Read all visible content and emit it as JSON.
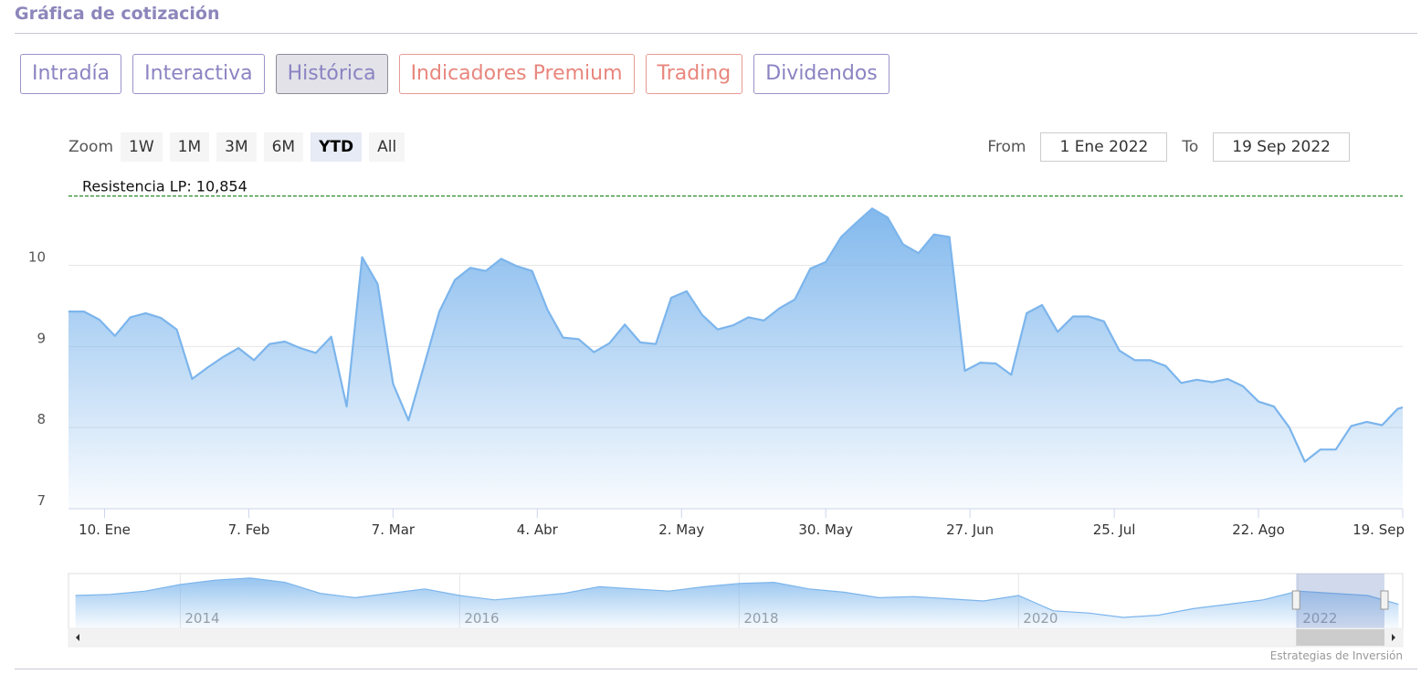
{
  "header": {
    "title": "Gráfica de cotización"
  },
  "tabs": [
    {
      "label": "Intradía",
      "style": "default"
    },
    {
      "label": "Interactiva",
      "style": "default"
    },
    {
      "label": "Histórica",
      "style": "active"
    },
    {
      "label": "Indicadores Premium",
      "style": "premium"
    },
    {
      "label": "Trading",
      "style": "premium"
    },
    {
      "label": "Dividendos",
      "style": "default"
    }
  ],
  "zoom": {
    "label": "Zoom",
    "buttons": [
      {
        "label": "1W",
        "selected": false
      },
      {
        "label": "1M",
        "selected": false
      },
      {
        "label": "3M",
        "selected": false
      },
      {
        "label": "6M",
        "selected": false
      },
      {
        "label": "YTD",
        "selected": true
      },
      {
        "label": "All",
        "selected": false
      }
    ]
  },
  "range": {
    "from_label": "From",
    "from": "1 Ene 2022",
    "to_label": "To",
    "to": "19 Sep 2022"
  },
  "chart_data": {
    "type": "area",
    "color": "#7cb5ec",
    "annotation": "Resistencia LP: 10,854",
    "resistance": 10.854,
    "resistance_color": "#2e8b2e",
    "x": [
      "2022-01-03",
      "2022-01-06",
      "2022-01-09",
      "2022-01-12",
      "2022-01-15",
      "2022-01-18",
      "2022-01-21",
      "2022-01-24",
      "2022-01-27",
      "2022-01-30",
      "2022-02-02",
      "2022-02-05",
      "2022-02-08",
      "2022-02-11",
      "2022-02-14",
      "2022-02-17",
      "2022-02-20",
      "2022-02-23",
      "2022-02-26",
      "2022-03-01",
      "2022-03-04",
      "2022-03-07",
      "2022-03-10",
      "2022-03-13",
      "2022-03-16",
      "2022-03-19",
      "2022-03-22",
      "2022-03-25",
      "2022-03-28",
      "2022-03-31",
      "2022-04-03",
      "2022-04-06",
      "2022-04-09",
      "2022-04-12",
      "2022-04-15",
      "2022-04-18",
      "2022-04-21",
      "2022-04-24",
      "2022-04-27",
      "2022-04-30",
      "2022-05-03",
      "2022-05-06",
      "2022-05-09",
      "2022-05-12",
      "2022-05-15",
      "2022-05-18",
      "2022-05-21",
      "2022-05-24",
      "2022-05-27",
      "2022-05-30",
      "2022-06-02",
      "2022-06-05",
      "2022-06-08",
      "2022-06-11",
      "2022-06-14",
      "2022-06-17",
      "2022-06-20",
      "2022-06-23",
      "2022-06-26",
      "2022-06-29",
      "2022-07-02",
      "2022-07-05",
      "2022-07-08",
      "2022-07-11",
      "2022-07-14",
      "2022-07-17",
      "2022-07-20",
      "2022-07-23",
      "2022-07-26",
      "2022-07-29",
      "2022-08-01",
      "2022-08-04",
      "2022-08-07",
      "2022-08-10",
      "2022-08-13",
      "2022-08-16",
      "2022-08-19",
      "2022-08-22",
      "2022-08-25",
      "2022-08-28",
      "2022-08-31",
      "2022-09-03",
      "2022-09-06",
      "2022-09-09",
      "2022-09-12",
      "2022-09-15",
      "2022-09-18",
      "2022-09-19"
    ],
    "values": [
      9.43,
      9.43,
      9.33,
      9.13,
      9.36,
      9.41,
      9.35,
      9.21,
      8.6,
      8.74,
      8.87,
      8.98,
      8.83,
      9.03,
      9.06,
      8.98,
      8.92,
      9.12,
      8.26,
      10.1,
      9.77,
      8.54,
      8.09,
      8.76,
      9.43,
      9.82,
      9.97,
      9.93,
      10.08,
      9.99,
      9.93,
      9.45,
      9.11,
      9.09,
      8.93,
      9.04,
      9.27,
      9.05,
      9.03,
      9.6,
      9.68,
      9.39,
      9.21,
      9.26,
      9.36,
      9.32,
      9.47,
      9.58,
      9.96,
      10.04,
      10.35,
      10.53,
      10.7,
      10.59,
      10.26,
      10.15,
      10.38,
      10.35,
      8.7,
      8.8,
      8.79,
      8.65,
      9.41,
      9.51,
      9.18,
      9.37,
      9.37,
      9.31,
      8.95,
      8.83,
      8.83,
      8.76,
      8.55,
      8.59,
      8.56,
      8.6,
      8.51,
      8.32,
      8.26,
      8.0,
      7.58,
      7.73,
      7.73,
      8.02,
      8.07,
      8.03,
      8.23,
      8.25
    ],
    "xlim": [
      "2022-01-03",
      "2022-09-19"
    ],
    "xticks": [
      {
        "value": "2022-01-10",
        "label": "10. Ene"
      },
      {
        "value": "2022-02-07",
        "label": "7. Feb"
      },
      {
        "value": "2022-03-07",
        "label": "7. Mar"
      },
      {
        "value": "2022-04-04",
        "label": "4. Abr"
      },
      {
        "value": "2022-05-02",
        "label": "2. May"
      },
      {
        "value": "2022-05-30",
        "label": "30. May"
      },
      {
        "value": "2022-06-27",
        "label": "27. Jun"
      },
      {
        "value": "2022-07-25",
        "label": "25. Jul"
      },
      {
        "value": "2022-08-22",
        "label": "22. Ago"
      },
      {
        "value": "2022-09-19",
        "label": "19. Sep"
      }
    ],
    "ylim": [
      7,
      11.03
    ],
    "yticks": [
      7,
      8,
      9,
      10
    ],
    "grid": true
  },
  "navigator": {
    "x": [
      2013.25,
      2013.5,
      2013.75,
      2014,
      2014.25,
      2014.5,
      2014.75,
      2015,
      2015.25,
      2015.5,
      2015.75,
      2016,
      2016.25,
      2016.5,
      2016.75,
      2017,
      2017.25,
      2017.5,
      2017.75,
      2018,
      2018.25,
      2018.5,
      2018.75,
      2019,
      2019.25,
      2019.5,
      2019.75,
      2020,
      2020.25,
      2020.5,
      2020.75,
      2021,
      2021.25,
      2021.5,
      2021.75,
      2022,
      2022.25,
      2022.5,
      2022.72
    ],
    "values": [
      9.0,
      9.1,
      9.4,
      10.0,
      10.4,
      10.6,
      10.2,
      9.2,
      8.8,
      9.2,
      9.6,
      9.0,
      8.6,
      8.9,
      9.2,
      9.8,
      9.6,
      9.4,
      9.8,
      10.1,
      10.2,
      9.6,
      9.3,
      8.8,
      8.9,
      8.7,
      8.5,
      9.0,
      7.6,
      7.4,
      7.0,
      7.2,
      7.8,
      8.2,
      8.6,
      9.4,
      9.2,
      9.0,
      8.2
    ],
    "xlim": [
      2013.2,
      2022.75
    ],
    "ylim": [
      6,
      11
    ],
    "xticks": [
      2014,
      2016,
      2018,
      2020,
      2022
    ]
  },
  "credit": "Estrategias de Inversión"
}
